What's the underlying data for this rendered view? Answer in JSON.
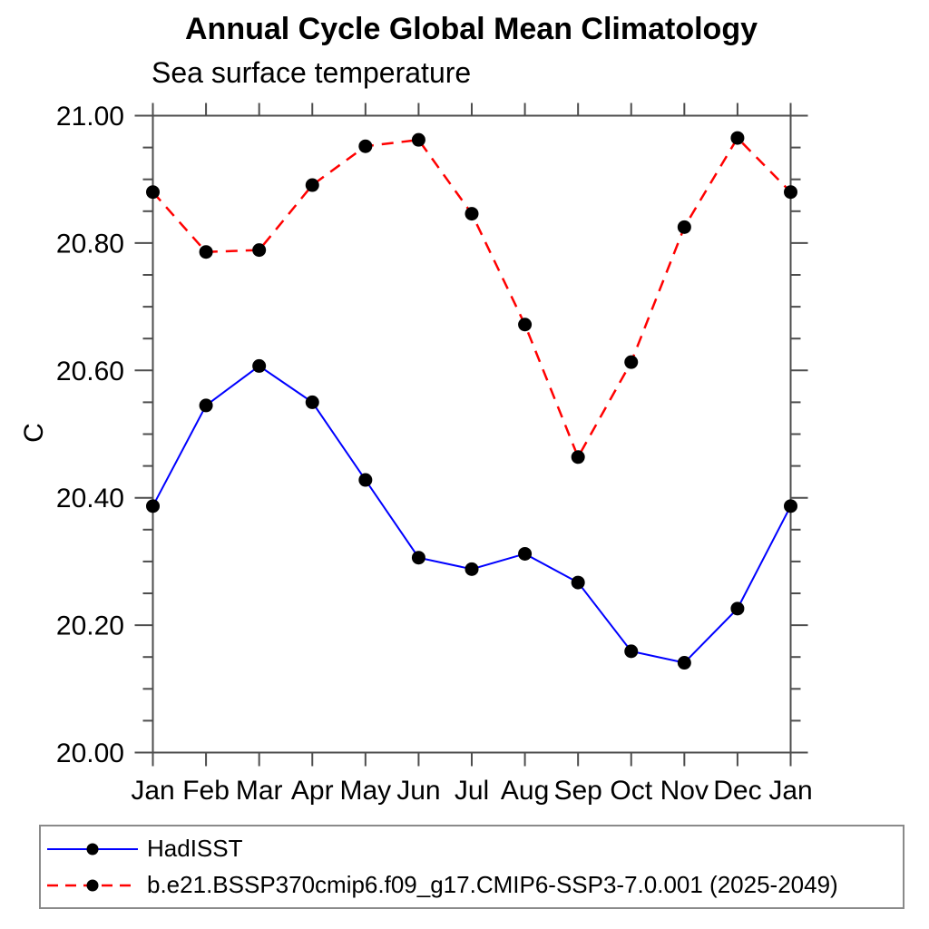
{
  "page": {
    "background": "#ffffff"
  },
  "chart_data": {
    "type": "line",
    "title": "Annual Cycle Global Mean Climatology",
    "subtitle": "Sea surface temperature",
    "ylabel": "C",
    "xlabel": "",
    "categories": [
      "Jan",
      "Feb",
      "Mar",
      "Apr",
      "May",
      "Jun",
      "Jul",
      "Aug",
      "Sep",
      "Oct",
      "Nov",
      "Dec",
      "Jan"
    ],
    "series": [
      {
        "name": "HadISST",
        "color": "#0000ff",
        "line_style": "solid",
        "marker": "circle",
        "marker_color": "#000000",
        "values": [
          20.387,
          20.545,
          20.607,
          20.55,
          20.428,
          20.306,
          20.288,
          20.312,
          20.267,
          20.159,
          20.141,
          20.226,
          20.387
        ]
      },
      {
        "name": "b.e21.BSSP370cmip6.f09_g17.CMIP6-SSP3-7.0.001 (2025-2049)",
        "color": "#ff0000",
        "line_style": "dashed",
        "marker": "circle",
        "marker_color": "#000000",
        "values": [
          20.88,
          20.786,
          20.789,
          20.891,
          20.952,
          20.962,
          20.846,
          20.672,
          20.464,
          20.613,
          20.825,
          20.965,
          20.88
        ]
      }
    ],
    "ylim": [
      20.0,
      21.0
    ],
    "yticks_major": [
      20.0,
      20.2,
      20.4,
      20.6,
      20.8,
      21.0
    ],
    "ytick_minor_step": 0.05,
    "ytick_decimals": 2,
    "grid": false,
    "legend_position": "bottom",
    "axis_color": "#4d4d4d"
  }
}
